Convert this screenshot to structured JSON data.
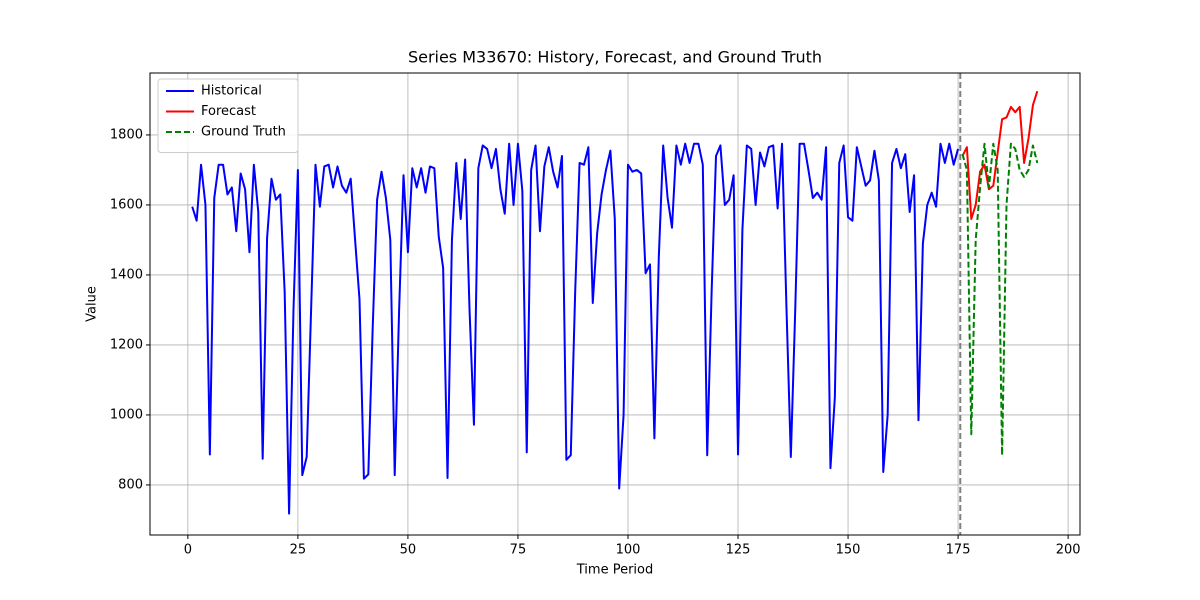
{
  "chart_data": {
    "type": "line",
    "title": "Series M33670: History, Forecast, and Ground Truth",
    "x_label": "Time Period",
    "y_label": "Value",
    "xlim": [
      -8.6,
      202.7
    ],
    "ylim": [
      657,
      1977
    ],
    "xticks": [
      0,
      25,
      50,
      75,
      100,
      125,
      150,
      175,
      200
    ],
    "yticks": [
      800,
      1000,
      1200,
      1400,
      1600,
      1800
    ],
    "grid": true,
    "legend": "upper-left",
    "forecast_start": 175.5,
    "forecast_start_color": "#808080",
    "series": [
      {
        "name": "Historical",
        "color": "#0000ff",
        "style": "solid",
        "x": [
          1,
          2,
          3,
          4,
          5,
          6,
          7,
          8,
          9,
          10,
          11,
          12,
          13,
          14,
          15,
          16,
          17,
          18,
          19,
          20,
          21,
          22,
          23,
          24,
          25,
          26,
          27,
          28,
          29,
          30,
          31,
          32,
          33,
          34,
          35,
          36,
          37,
          38,
          39,
          40,
          41,
          42,
          43,
          44,
          45,
          46,
          47,
          48,
          49,
          50,
          51,
          52,
          53,
          54,
          55,
          56,
          57,
          58,
          59,
          60,
          61,
          62,
          63,
          64,
          65,
          66,
          67,
          68,
          69,
          70,
          71,
          72,
          73,
          74,
          75,
          76,
          77,
          78,
          79,
          80,
          81,
          82,
          83,
          84,
          85,
          86,
          87,
          88,
          89,
          90,
          91,
          92,
          93,
          94,
          95,
          96,
          97,
          98,
          99,
          100,
          101,
          102,
          103,
          104,
          105,
          106,
          107,
          108,
          109,
          110,
          111,
          112,
          113,
          114,
          115,
          116,
          117,
          118,
          119,
          120,
          121,
          122,
          123,
          124,
          125,
          126,
          127,
          128,
          129,
          130,
          131,
          132,
          133,
          134,
          135,
          136,
          137,
          138,
          139,
          140,
          141,
          142,
          143,
          144,
          145,
          146,
          147,
          148,
          149,
          150,
          151,
          152,
          153,
          154,
          155,
          156,
          157,
          158,
          159,
          160,
          161,
          162,
          163,
          164,
          165,
          166,
          167,
          168,
          169,
          170,
          171,
          172,
          173,
          174,
          175
        ],
        "values": [
          1595,
          1555,
          1715,
          1600,
          887,
          1620,
          1715,
          1715,
          1630,
          1650,
          1525,
          1690,
          1645,
          1465,
          1715,
          1580,
          875,
          1505,
          1675,
          1615,
          1630,
          1350,
          718,
          1300,
          1700,
          828,
          880,
          1300,
          1715,
          1595,
          1710,
          1715,
          1650,
          1710,
          1655,
          1635,
          1675,
          1500,
          1330,
          818,
          830,
          1250,
          1615,
          1695,
          1620,
          1500,
          828,
          1300,
          1685,
          1465,
          1705,
          1650,
          1705,
          1635,
          1710,
          1705,
          1510,
          1420,
          820,
          1500,
          1720,
          1560,
          1730,
          1300,
          972,
          1705,
          1770,
          1760,
          1705,
          1760,
          1645,
          1575,
          1775,
          1600,
          1775,
          1640,
          893,
          1700,
          1770,
          1525,
          1710,
          1765,
          1695,
          1650,
          1740,
          872,
          885,
          1350,
          1720,
          1715,
          1765,
          1320,
          1520,
          1630,
          1700,
          1755,
          1560,
          790,
          1000,
          1715,
          1695,
          1700,
          1690,
          1405,
          1430,
          933,
          1450,
          1770,
          1620,
          1535,
          1770,
          1715,
          1775,
          1720,
          1775,
          1775,
          1715,
          885,
          1350,
          1740,
          1770,
          1600,
          1615,
          1685,
          887,
          1530,
          1770,
          1760,
          1600,
          1750,
          1710,
          1765,
          1770,
          1590,
          1775,
          1310,
          880,
          1300,
          1775,
          1775,
          1700,
          1620,
          1635,
          1615,
          1765,
          848,
          1050,
          1720,
          1770,
          1565,
          1555,
          1765,
          1710,
          1655,
          1670,
          1755,
          1670,
          837,
          1000,
          1720,
          1760,
          1705,
          1745,
          1580,
          1685,
          985,
          1490,
          1600,
          1635,
          1595,
          1775,
          1720,
          1775,
          1715,
          1760
        ]
      },
      {
        "name": "Forecast",
        "color": "#ff0000",
        "style": "solid",
        "x": [
          176,
          177,
          178,
          179,
          180,
          181,
          182,
          183,
          184,
          185,
          186,
          187,
          188,
          189,
          190,
          191,
          192,
          193
        ],
        "values": [
          1740,
          1765,
          1560,
          1600,
          1695,
          1715,
          1645,
          1655,
          1750,
          1845,
          1850,
          1880,
          1865,
          1880,
          1720,
          1790,
          1885,
          1925
        ]
      },
      {
        "name": "Ground Truth",
        "color": "#008000",
        "style": "dashed",
        "x": [
          176,
          177,
          178,
          179,
          180,
          181,
          182,
          183,
          184,
          185,
          186,
          187,
          188,
          189,
          190,
          191,
          192,
          193
        ],
        "values": [
          1745,
          1700,
          945,
          1500,
          1650,
          1775,
          1650,
          1775,
          1700,
          885,
          1600,
          1775,
          1760,
          1700,
          1680,
          1700,
          1770,
          1720
        ]
      }
    ]
  }
}
